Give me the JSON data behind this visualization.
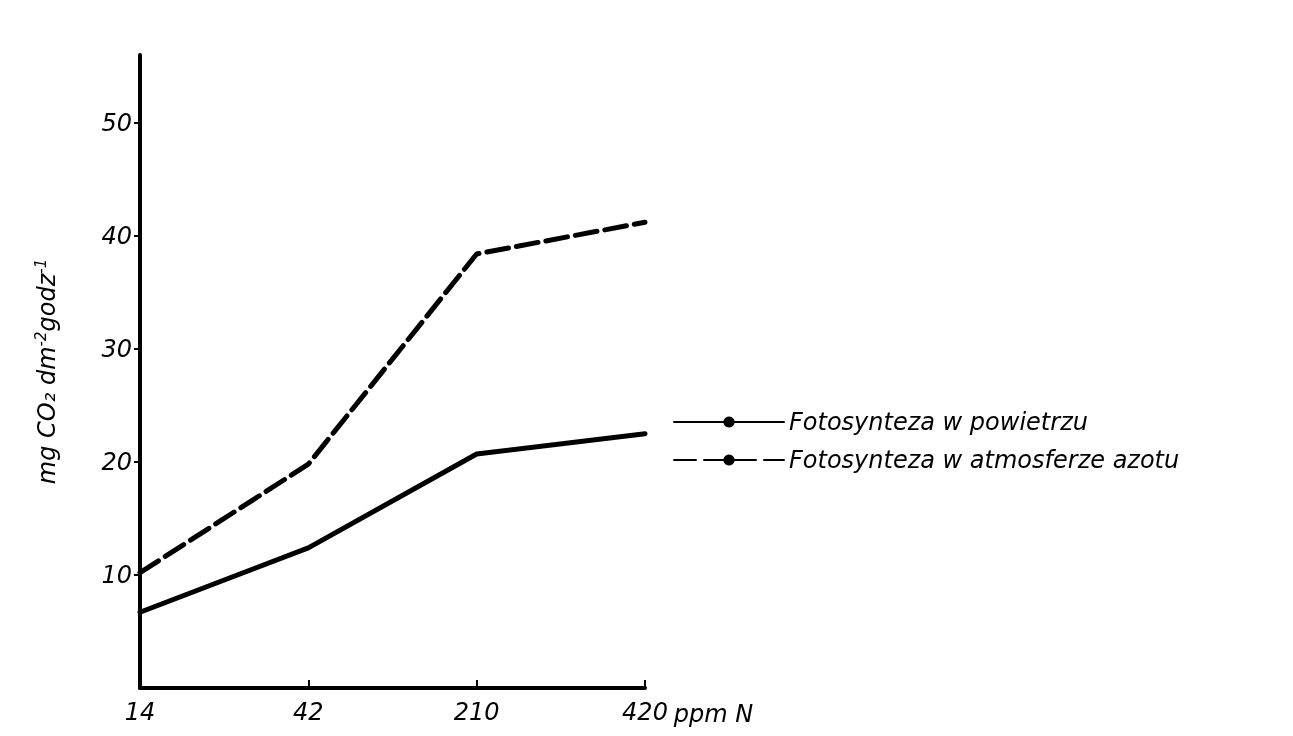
{
  "chart_data": {
    "type": "line",
    "xlabel": "ppm N",
    "ylabel": "mg CO₂ dm$^{-2}$godz$^{-1}$",
    "categories": [
      "14",
      "42",
      "210",
      "420"
    ],
    "series": [
      {
        "name": "Fotosynteza w powietrzu",
        "color": "#000000",
        "line_style": "solid",
        "values": [
          6.7,
          12.4,
          20.7,
          22.5
        ]
      },
      {
        "name": "Fotosynteza w atmosferze azotu",
        "color": "#000000",
        "line_style": "dashed",
        "values": [
          10.2,
          19.8,
          38.4,
          41.2
        ]
      }
    ],
    "ylim": [
      0,
      56
    ],
    "yticks": [
      10,
      20,
      30,
      40,
      50
    ],
    "grid": false,
    "legend": "right",
    "marker": "none"
  }
}
